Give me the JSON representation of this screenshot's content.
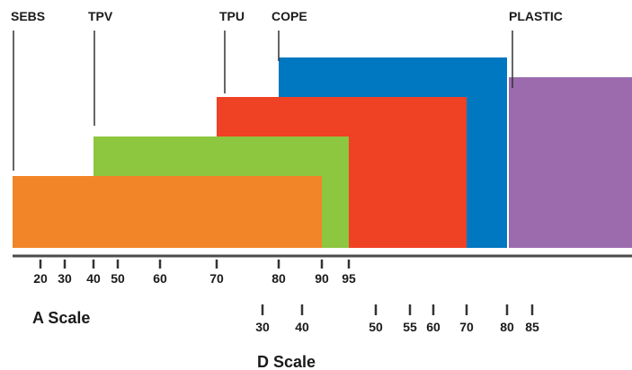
{
  "chart_data": {
    "type": "range-bar",
    "series": [
      {
        "name": "SEBS",
        "color": "#F28527",
        "a_start": 10,
        "a_end": 90,
        "level": 1
      },
      {
        "name": "TPV",
        "color": "#8DC63F",
        "a_start": 40,
        "a_end": 95,
        "level": 2
      },
      {
        "name": "TPU",
        "color": "#EF4123",
        "a_start": 70,
        "d_end": 70,
        "level": 3
      },
      {
        "name": "COPE",
        "color": "#0078C1",
        "a_start": 80,
        "d_end": 80,
        "level": 4
      },
      {
        "name": "PLASTIC",
        "color": "#9C6BAE",
        "d_start": 80,
        "level": 3.5
      }
    ],
    "a_scale": {
      "label": "A Scale",
      "ticks": [
        20,
        30,
        40,
        50,
        60,
        70,
        80,
        90,
        95
      ]
    },
    "d_scale": {
      "label": "D Scale",
      "ticks": [
        30,
        40,
        50,
        55,
        60,
        70,
        80,
        85
      ]
    },
    "grid": false,
    "legend": "none"
  }
}
